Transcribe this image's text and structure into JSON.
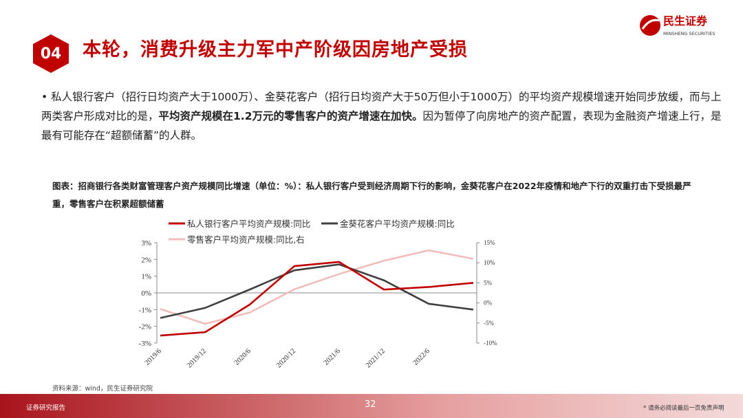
{
  "logo": {
    "name": "民生证券",
    "sub": "MINSHENG SECURITIES"
  },
  "header": {
    "number": "04",
    "title": "本轮，消费升级主力军中产阶级因房地产受损"
  },
  "body": [
    "私人银行客户（招行日均资产大于1000万）、金葵花客户（招行日均资产大于50万但小于1000万）的平均资产规模增速开始同步放缓，而与上两类客户形成对比的是，",
    "平均资产规模在1.2万元的零售客户的资产增速在加快。",
    "因为暂停了向房地产的资产配置，表现为金融资产增速上行，是最有可能存在“超额储蓄”的人群。"
  ],
  "caption": "图表：招商银行各类财富管理客户资产规模同比增速（单位：%）：私人银行客户受到经济周期下行的影响，金葵花客户在2022年疫情和地产下行的双重打击下受损最严重，零售客户在积累超额储蓄",
  "source": "资料来源：wind，民生证券研究院",
  "footer": {
    "label": "证券研究报告",
    "page": "32",
    "disclaimer": "* 请务必阅读最后一页免责声明"
  },
  "chart_data": {
    "type": "line",
    "categories": [
      "2019/6",
      "2019/12",
      "2020/6",
      "2020/12",
      "2021/6",
      "2021/12",
      "2022/6",
      null
    ],
    "series": [
      {
        "name": "私人银行客户平均资产规模:同比",
        "color": "#c00000",
        "values": [
          -2.55,
          -2.35,
          -0.7,
          1.6,
          1.85,
          0.2,
          0.35,
          0.6
        ]
      },
      {
        "name": "金葵花客户平均资产规模:同比",
        "color": "#404040",
        "values": [
          -1.5,
          -0.9,
          0.2,
          1.35,
          1.7,
          0.75,
          -0.65,
          -1.0
        ]
      },
      {
        "name": "零售客户平均资产规模:同比,右",
        "color": "#f0bcbc",
        "axis": "y2",
        "values": [
          -1.5,
          -5.2,
          -2.4,
          3.4,
          7.2,
          10.5,
          13.1,
          11.0
        ]
      }
    ],
    "ylim": [
      -3,
      3
    ],
    "yticks": [
      {
        "value": 3,
        "label": "3%"
      },
      {
        "value": 2,
        "label": "2%"
      },
      {
        "value": 1,
        "label": "1%"
      },
      {
        "value": 0,
        "label": "0%"
      },
      {
        "value": -1,
        "label": "-1%"
      },
      {
        "value": -2,
        "label": "-2%"
      },
      {
        "value": -3,
        "label": "-3%"
      }
    ],
    "y2lim": [
      -10,
      15
    ],
    "y2ticks": [
      {
        "value": 15,
        "label": "15%"
      },
      {
        "value": 10,
        "label": "10%"
      },
      {
        "value": 5,
        "label": "5%"
      },
      {
        "value": 0,
        "label": "0%"
      },
      {
        "value": -5,
        "label": "-5%"
      },
      {
        "value": -10,
        "label": "-10%"
      }
    ]
  }
}
